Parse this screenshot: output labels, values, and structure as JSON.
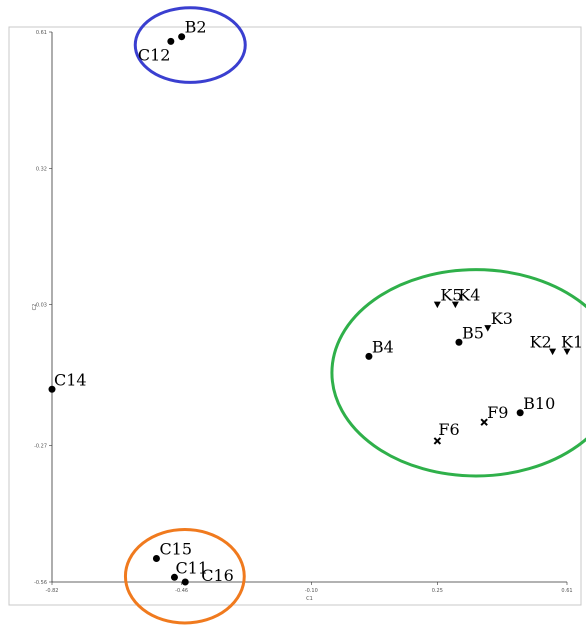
{
  "chart_data": {
    "type": "scatter",
    "title": "",
    "xlabel": "C1",
    "ylabel": "C2",
    "xlim": [
      -0.82,
      0.61
    ],
    "ylim": [
      -0.56,
      0.61
    ],
    "x_ticks": [
      -0.82,
      -0.46,
      -0.1,
      0.25,
      0.61
    ],
    "x_tick_labels": [
      "-0.82",
      "-0.46",
      "-0.10",
      "0.25",
      "0.61"
    ],
    "y_ticks": [
      -0.56,
      -0.27,
      0.03,
      0.32,
      0.61
    ],
    "y_tick_labels": [
      "-0.56",
      "-0.27",
      "0.03",
      "0.32",
      "0.61"
    ],
    "grid": false,
    "points": [
      {
        "label": "B2",
        "x": -0.46,
        "y": 0.6,
        "marker": "circle"
      },
      {
        "label": "C12",
        "x": -0.49,
        "y": 0.59,
        "marker": "circle"
      },
      {
        "label": "K5",
        "x": 0.25,
        "y": 0.03,
        "marker": "triangle"
      },
      {
        "label": "K4",
        "x": 0.3,
        "y": 0.03,
        "marker": "triangle"
      },
      {
        "label": "K3",
        "x": 0.39,
        "y": -0.02,
        "marker": "triangle"
      },
      {
        "label": "B5",
        "x": 0.31,
        "y": -0.05,
        "marker": "circle"
      },
      {
        "label": "K2",
        "x": 0.57,
        "y": -0.07,
        "marker": "triangle"
      },
      {
        "label": "K1",
        "x": 0.61,
        "y": -0.07,
        "marker": "triangle"
      },
      {
        "label": "B4",
        "x": 0.06,
        "y": -0.08,
        "marker": "circle"
      },
      {
        "label": "C14",
        "x": -0.82,
        "y": -0.15,
        "marker": "circle"
      },
      {
        "label": "B10",
        "x": 0.48,
        "y": -0.2,
        "marker": "circle"
      },
      {
        "label": "F9",
        "x": 0.38,
        "y": -0.22,
        "marker": "cross"
      },
      {
        "label": "F6",
        "x": 0.25,
        "y": -0.26,
        "marker": "cross"
      },
      {
        "label": "C15",
        "x": -0.53,
        "y": -0.51,
        "marker": "circle"
      },
      {
        "label": "C11",
        "x": -0.48,
        "y": -0.55,
        "marker": "circle"
      },
      {
        "label": "C16",
        "x": -0.45,
        "y": -0.56,
        "marker": "circle"
      }
    ],
    "highlight_groups": [
      {
        "members": [
          "B2",
          "C12"
        ],
        "color": "#3a3fd0"
      },
      {
        "members": [
          "K1",
          "K2",
          "K3",
          "K4",
          "K5",
          "B4",
          "B5",
          "B10",
          "F6",
          "F9"
        ],
        "color": "#2fb04a"
      },
      {
        "members": [
          "C11",
          "C15",
          "C16"
        ],
        "color": "#f07a1e"
      }
    ]
  }
}
